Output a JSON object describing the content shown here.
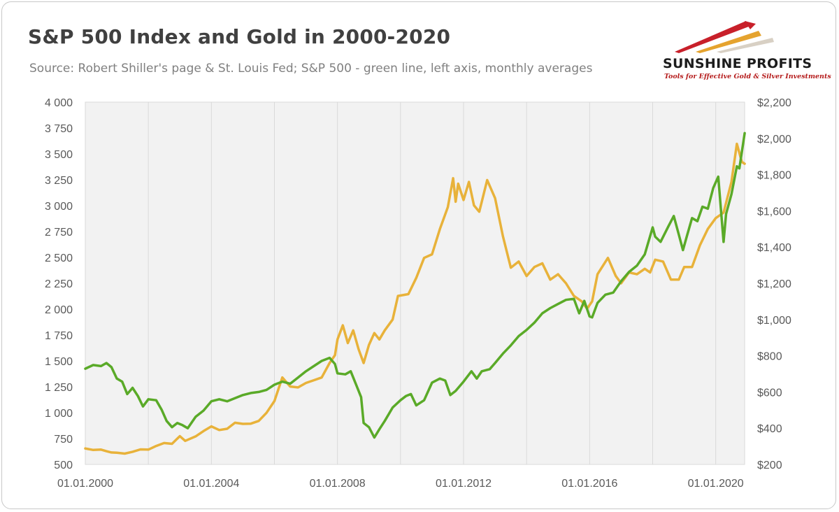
{
  "header": {
    "title": "S&P 500 Index and Gold in 2000-2020",
    "subtitle": "Source: Robert Shiller's page & St. Louis Fed; S&P 500 - green line, left axis, monthly averages"
  },
  "logo": {
    "name": "SUNSHINE PROFITS",
    "tagline": "Tools for Effective Gold & Silver Investments"
  },
  "colors": {
    "sp500": "#5aaa28",
    "gold": "#e8b23a",
    "plot_bg": "#f2f2f2",
    "grid": "#d9d9d9"
  },
  "chart_data": {
    "type": "line",
    "title": "S&P 500 Index and Gold in 2000-2020",
    "x_range": [
      2000.0,
      2020.917
    ],
    "x_tick_labels": [
      "01.01.2000",
      "01.01.2004",
      "01.01.2008",
      "01.01.2012",
      "01.01.2016",
      "01.01.2020"
    ],
    "x_tick_values": [
      2000,
      2004,
      2008,
      2012,
      2016,
      2020
    ],
    "left_axis": {
      "min": 500,
      "max": 4000,
      "tick_values": [
        500,
        750,
        1000,
        1250,
        1500,
        1750,
        2000,
        2250,
        2500,
        2750,
        3000,
        3250,
        3500,
        3750,
        4000
      ],
      "tick_labels": [
        "500",
        "750",
        "1 000",
        "1 250",
        "1 500",
        "1 750",
        "2 000",
        "2 250",
        "2 500",
        "2 750",
        "3 000",
        "3 250",
        "3 500",
        "3 750",
        "4 000"
      ]
    },
    "right_axis": {
      "min": 200,
      "max": 2200,
      "tick_values": [
        200,
        400,
        600,
        800,
        1000,
        1200,
        1400,
        1600,
        1800,
        2000,
        2200
      ],
      "tick_labels": [
        "$200",
        "$400",
        "$600",
        "$800",
        "$1,000",
        "$1,200",
        "$1,400",
        "$1,600",
        "$1,800",
        "$2,000",
        "$2,200"
      ]
    },
    "grid": "vertical",
    "series": [
      {
        "name": "S&P 500",
        "axis": "left",
        "points": [
          [
            2000.0,
            1425
          ],
          [
            2000.25,
            1460
          ],
          [
            2000.5,
            1450
          ],
          [
            2000.67,
            1480
          ],
          [
            2000.83,
            1440
          ],
          [
            2001.0,
            1330
          ],
          [
            2001.17,
            1300
          ],
          [
            2001.33,
            1180
          ],
          [
            2001.5,
            1240
          ],
          [
            2001.67,
            1160
          ],
          [
            2001.83,
            1060
          ],
          [
            2002.0,
            1130
          ],
          [
            2002.25,
            1120
          ],
          [
            2002.42,
            1030
          ],
          [
            2002.58,
            920
          ],
          [
            2002.75,
            860
          ],
          [
            2002.92,
            900
          ],
          [
            2003.08,
            880
          ],
          [
            2003.25,
            850
          ],
          [
            2003.5,
            960
          ],
          [
            2003.75,
            1020
          ],
          [
            2004.0,
            1110
          ],
          [
            2004.25,
            1130
          ],
          [
            2004.5,
            1110
          ],
          [
            2004.75,
            1140
          ],
          [
            2005.0,
            1170
          ],
          [
            2005.25,
            1190
          ],
          [
            2005.5,
            1200
          ],
          [
            2005.75,
            1220
          ],
          [
            2006.0,
            1270
          ],
          [
            2006.25,
            1300
          ],
          [
            2006.5,
            1280
          ],
          [
            2006.75,
            1340
          ],
          [
            2007.0,
            1400
          ],
          [
            2007.25,
            1450
          ],
          [
            2007.5,
            1500
          ],
          [
            2007.75,
            1530
          ],
          [
            2007.92,
            1470
          ],
          [
            2008.0,
            1380
          ],
          [
            2008.25,
            1370
          ],
          [
            2008.42,
            1400
          ],
          [
            2008.58,
            1280
          ],
          [
            2008.75,
            1150
          ],
          [
            2008.83,
            900
          ],
          [
            2009.0,
            860
          ],
          [
            2009.17,
            760
          ],
          [
            2009.33,
            840
          ],
          [
            2009.5,
            920
          ],
          [
            2009.75,
            1050
          ],
          [
            2010.0,
            1120
          ],
          [
            2010.17,
            1160
          ],
          [
            2010.33,
            1180
          ],
          [
            2010.5,
            1070
          ],
          [
            2010.75,
            1120
          ],
          [
            2011.0,
            1290
          ],
          [
            2011.25,
            1330
          ],
          [
            2011.42,
            1310
          ],
          [
            2011.58,
            1170
          ],
          [
            2011.75,
            1210
          ],
          [
            2012.0,
            1300
          ],
          [
            2012.25,
            1400
          ],
          [
            2012.42,
            1330
          ],
          [
            2012.58,
            1400
          ],
          [
            2012.83,
            1420
          ],
          [
            2013.0,
            1480
          ],
          [
            2013.25,
            1570
          ],
          [
            2013.5,
            1650
          ],
          [
            2013.75,
            1740
          ],
          [
            2014.0,
            1800
          ],
          [
            2014.25,
            1870
          ],
          [
            2014.5,
            1960
          ],
          [
            2014.75,
            2010
          ],
          [
            2015.0,
            2050
          ],
          [
            2015.25,
            2090
          ],
          [
            2015.5,
            2100
          ],
          [
            2015.67,
            1960
          ],
          [
            2015.83,
            2080
          ],
          [
            2016.0,
            1930
          ],
          [
            2016.08,
            1920
          ],
          [
            2016.25,
            2060
          ],
          [
            2016.5,
            2140
          ],
          [
            2016.75,
            2160
          ],
          [
            2017.0,
            2270
          ],
          [
            2017.25,
            2360
          ],
          [
            2017.5,
            2420
          ],
          [
            2017.75,
            2530
          ],
          [
            2018.0,
            2790
          ],
          [
            2018.08,
            2700
          ],
          [
            2018.25,
            2650
          ],
          [
            2018.5,
            2800
          ],
          [
            2018.67,
            2900
          ],
          [
            2018.83,
            2720
          ],
          [
            2018.96,
            2570
          ],
          [
            2019.08,
            2700
          ],
          [
            2019.25,
            2880
          ],
          [
            2019.42,
            2850
          ],
          [
            2019.58,
            2990
          ],
          [
            2019.75,
            2970
          ],
          [
            2019.92,
            3170
          ],
          [
            2020.08,
            3280
          ],
          [
            2020.25,
            2650
          ],
          [
            2020.33,
            2920
          ],
          [
            2020.5,
            3110
          ],
          [
            2020.67,
            3380
          ],
          [
            2020.75,
            3360
          ],
          [
            2020.92,
            3700
          ]
        ]
      },
      {
        "name": "Gold",
        "axis": "right",
        "points": [
          [
            2000.0,
            288
          ],
          [
            2000.25,
            280
          ],
          [
            2000.5,
            282
          ],
          [
            2000.67,
            273
          ],
          [
            2000.83,
            266
          ],
          [
            2001.0,
            265
          ],
          [
            2001.25,
            260
          ],
          [
            2001.5,
            270
          ],
          [
            2001.75,
            283
          ],
          [
            2002.0,
            282
          ],
          [
            2002.25,
            302
          ],
          [
            2002.5,
            318
          ],
          [
            2002.75,
            314
          ],
          [
            2003.0,
            356
          ],
          [
            2003.17,
            330
          ],
          [
            2003.5,
            355
          ],
          [
            2003.75,
            384
          ],
          [
            2004.0,
            410
          ],
          [
            2004.25,
            390
          ],
          [
            2004.5,
            397
          ],
          [
            2004.75,
            430
          ],
          [
            2005.0,
            424
          ],
          [
            2005.25,
            425
          ],
          [
            2005.5,
            440
          ],
          [
            2005.75,
            485
          ],
          [
            2006.0,
            550
          ],
          [
            2006.25,
            680
          ],
          [
            2006.5,
            630
          ],
          [
            2006.75,
            625
          ],
          [
            2007.0,
            650
          ],
          [
            2007.25,
            665
          ],
          [
            2007.5,
            680
          ],
          [
            2007.75,
            760
          ],
          [
            2007.92,
            803
          ],
          [
            2008.0,
            890
          ],
          [
            2008.17,
            968
          ],
          [
            2008.33,
            870
          ],
          [
            2008.5,
            940
          ],
          [
            2008.67,
            836
          ],
          [
            2008.83,
            760
          ],
          [
            2009.0,
            860
          ],
          [
            2009.17,
            925
          ],
          [
            2009.33,
            890
          ],
          [
            2009.5,
            940
          ],
          [
            2009.75,
            1000
          ],
          [
            2009.92,
            1130
          ],
          [
            2010.25,
            1140
          ],
          [
            2010.5,
            1230
          ],
          [
            2010.75,
            1340
          ],
          [
            2011.0,
            1360
          ],
          [
            2011.25,
            1500
          ],
          [
            2011.5,
            1620
          ],
          [
            2011.67,
            1780
          ],
          [
            2011.75,
            1650
          ],
          [
            2011.83,
            1750
          ],
          [
            2012.0,
            1660
          ],
          [
            2012.17,
            1760
          ],
          [
            2012.33,
            1630
          ],
          [
            2012.5,
            1595
          ],
          [
            2012.75,
            1770
          ],
          [
            2013.0,
            1670
          ],
          [
            2013.25,
            1460
          ],
          [
            2013.5,
            1286
          ],
          [
            2013.75,
            1320
          ],
          [
            2014.0,
            1240
          ],
          [
            2014.25,
            1290
          ],
          [
            2014.5,
            1310
          ],
          [
            2014.75,
            1220
          ],
          [
            2015.0,
            1250
          ],
          [
            2015.25,
            1200
          ],
          [
            2015.5,
            1130
          ],
          [
            2015.75,
            1100
          ],
          [
            2015.92,
            1060
          ],
          [
            2016.08,
            1100
          ],
          [
            2016.25,
            1250
          ],
          [
            2016.58,
            1340
          ],
          [
            2016.83,
            1240
          ],
          [
            2017.0,
            1200
          ],
          [
            2017.25,
            1260
          ],
          [
            2017.5,
            1250
          ],
          [
            2017.75,
            1280
          ],
          [
            2017.92,
            1260
          ],
          [
            2018.08,
            1330
          ],
          [
            2018.33,
            1320
          ],
          [
            2018.58,
            1220
          ],
          [
            2018.83,
            1220
          ],
          [
            2019.0,
            1290
          ],
          [
            2019.25,
            1290
          ],
          [
            2019.5,
            1410
          ],
          [
            2019.75,
            1500
          ],
          [
            2020.0,
            1560
          ],
          [
            2020.25,
            1590
          ],
          [
            2020.5,
            1760
          ],
          [
            2020.67,
            1970
          ],
          [
            2020.83,
            1870
          ],
          [
            2020.92,
            1860
          ]
        ]
      }
    ]
  }
}
